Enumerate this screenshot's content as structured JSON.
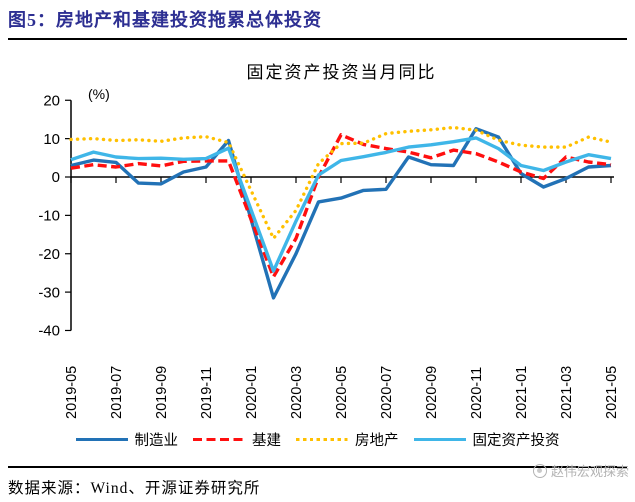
{
  "header": {
    "title": "图5：房地产和基建投资拖累总体投资"
  },
  "chart": {
    "title": "固定资产投资当月同比",
    "unit_label": "(%)"
  },
  "colors": {
    "header_title": "#2D2F92",
    "axis": "#000000",
    "watermark_gray": "#b3b3b3"
  },
  "chart_data": {
    "type": "line",
    "title": "固定资产投资当月同比",
    "unit": "%",
    "grid": false,
    "legend_position": "bottom",
    "ylim": [
      -40,
      20
    ],
    "yticks": [
      20,
      10,
      0,
      -10,
      -20,
      -30,
      -40
    ],
    "x_tick_step": 2,
    "categories": [
      "2019-05",
      "2019-06",
      "2019-07",
      "2019-08",
      "2019-09",
      "2019-10",
      "2019-11",
      "2019-12",
      "2020-01",
      "2020-02",
      "2020-03",
      "2020-04",
      "2020-05",
      "2020-06",
      "2020-07",
      "2020-08",
      "2020-09",
      "2020-10",
      "2020-11",
      "2020-12",
      "2021-01",
      "2021-02",
      "2021-03",
      "2021-04",
      "2021-05"
    ],
    "series": [
      {
        "name": "制造业",
        "color": "#2272B6",
        "style": "solid",
        "values": [
          3.0,
          4.4,
          3.8,
          -1.6,
          -1.8,
          1.3,
          2.6,
          9.5,
          -11.0,
          -31.5,
          -20.0,
          -6.5,
          -5.5,
          -3.5,
          -3.2,
          5.2,
          3.2,
          3.0,
          12.6,
          10.4,
          0.9,
          -2.6,
          -0.4,
          2.6,
          3.0
        ]
      },
      {
        "name": "基建",
        "color": "#FF0F0F",
        "style": "dashed",
        "values": [
          2.3,
          3.2,
          2.6,
          3.5,
          2.9,
          4.1,
          4.2,
          4.2,
          -11.0,
          -26.0,
          -16.0,
          0.0,
          11.0,
          8.5,
          7.4,
          6.5,
          5.0,
          7.0,
          6.1,
          3.9,
          1.3,
          -0.4,
          5.2,
          3.9,
          3.2
        ]
      },
      {
        "name": "房地产",
        "color": "#FFC000",
        "style": "dotted",
        "values": [
          9.8,
          10.0,
          9.5,
          9.7,
          9.3,
          10.2,
          10.5,
          9.0,
          -3.5,
          -16.0,
          -8.7,
          3.5,
          8.7,
          8.8,
          11.3,
          11.9,
          12.3,
          12.9,
          12.2,
          9.6,
          8.3,
          7.8,
          7.8,
          10.4,
          9.1
        ]
      },
      {
        "name": "固定资产投资",
        "color": "#3FB6E8",
        "style": "solid",
        "values": [
          4.5,
          6.5,
          5.2,
          4.8,
          4.9,
          4.6,
          4.8,
          7.5,
          -8.5,
          -24.5,
          -11.5,
          0.5,
          4.3,
          5.3,
          6.4,
          7.8,
          8.4,
          9.2,
          10.2,
          7.4,
          3.0,
          1.7,
          3.9,
          5.8,
          4.8
        ]
      }
    ]
  },
  "footer": {
    "source": "数据来源：Wind、开源证券研究所",
    "watermark": "赵伟宏观探索"
  }
}
